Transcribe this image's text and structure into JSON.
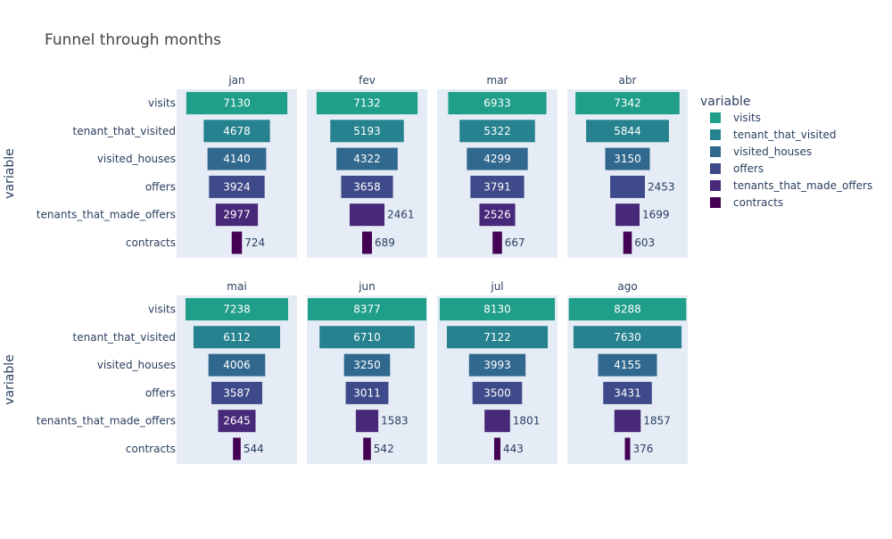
{
  "chart_data": {
    "type": "bar",
    "subtype": "funnel-facets",
    "title": "Funnel through months",
    "y_axis_title": "variable",
    "legend": {
      "title": "variable",
      "placement": "right",
      "items": [
        {
          "name": "visits",
          "color": "#1f9e89"
        },
        {
          "name": "tenant_that_visited",
          "color": "#26828e"
        },
        {
          "name": "visited_houses",
          "color": "#31688e"
        },
        {
          "name": "offers",
          "color": "#3e4a89"
        },
        {
          "name": "tenants_that_made_offers",
          "color": "#482878"
        },
        {
          "name": "contracts",
          "color": "#440154"
        }
      ]
    },
    "categories": [
      "visits",
      "tenant_that_visited",
      "visited_houses",
      "offers",
      "tenants_that_made_offers",
      "contracts"
    ],
    "panels": [
      {
        "month": "jan",
        "values": [
          7130,
          4678,
          4140,
          3924,
          2977,
          724
        ]
      },
      {
        "month": "fev",
        "values": [
          7132,
          5193,
          4322,
          3658,
          2461,
          689
        ]
      },
      {
        "month": "mar",
        "values": [
          6933,
          5322,
          4299,
          3791,
          2526,
          667
        ]
      },
      {
        "month": "abr",
        "values": [
          7342,
          5844,
          3150,
          2453,
          1699,
          603
        ]
      },
      {
        "month": "mai",
        "values": [
          7238,
          6112,
          4006,
          3587,
          2645,
          544
        ]
      },
      {
        "month": "jun",
        "values": [
          8377,
          6710,
          3250,
          3011,
          1583,
          542
        ]
      },
      {
        "month": "jul",
        "values": [
          8130,
          7122,
          3993,
          3500,
          1801,
          443
        ]
      },
      {
        "month": "ago",
        "values": [
          8288,
          7630,
          4155,
          3431,
          1857,
          376
        ]
      }
    ]
  }
}
